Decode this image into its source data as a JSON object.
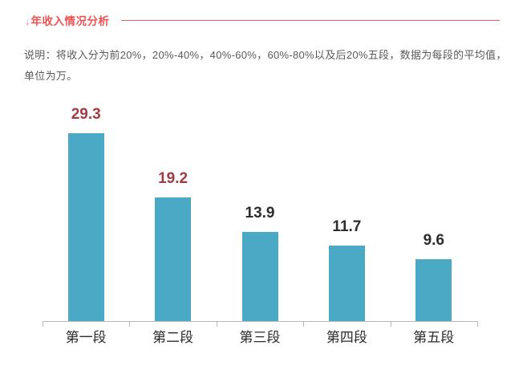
{
  "header": {
    "arrow_icon": "↓",
    "title": "年收入情况分析",
    "accent_color": "#f05252"
  },
  "description": "说明：将收入分为前20%，20%-40%，40%-60%，60%-80%以及后20%五段，数据为每段的平均值，单位为万。",
  "chart_data": {
    "type": "bar",
    "categories": [
      "第一段",
      "第二段",
      "第三段",
      "第四段",
      "第五段"
    ],
    "values": [
      29.3,
      19.2,
      13.9,
      11.7,
      9.6
    ],
    "title": "",
    "xlabel": "",
    "ylabel": "",
    "unit": "万",
    "ylim": [
      0,
      30
    ],
    "grid": false,
    "legend": false,
    "bar_color": "#4aa9c5",
    "axis_color": "#b8b8b8",
    "value_label_colors": [
      "#a13b44",
      "#a13b44",
      "#2d2d2d",
      "#2d2d2d",
      "#2d2d2d"
    ]
  }
}
